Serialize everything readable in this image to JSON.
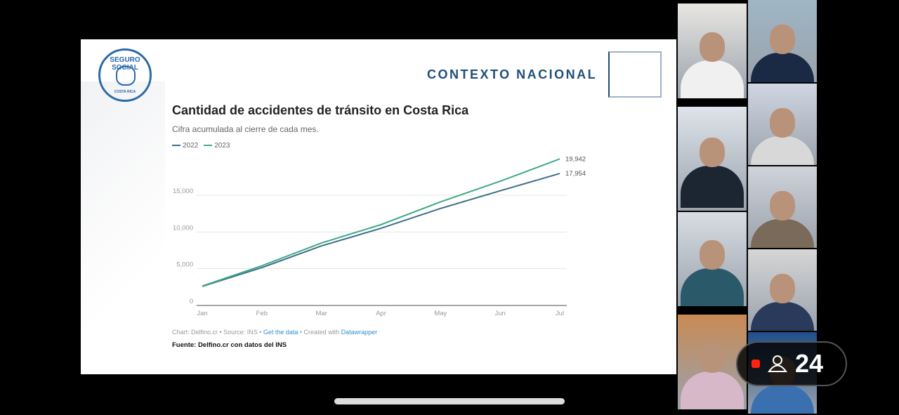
{
  "slide": {
    "logo_text": "SEGURO SOCIAL",
    "logo_subtext": "COSTA RICA",
    "section_title": "CONTEXTO NACIONAL",
    "credit": {
      "prefix": "Chart: Delfino.cr • Source: INS • ",
      "get_data": "Get the data",
      "middle": " • Created with ",
      "datawrapper": "Datawrapper"
    },
    "fuente": "Fuente: Delfino.cr con datos del INS"
  },
  "chart_data": {
    "type": "line",
    "title": "Cantidad de accidentes de tránsito en Costa Rica",
    "subtitle": "Cifra acumulada al cierre de cada mes.",
    "categories": [
      "Jan",
      "Feb",
      "Mar",
      "Apr",
      "May",
      "Jun",
      "Jul"
    ],
    "series": [
      {
        "name": "2022",
        "color": "#3d6f86",
        "values": [
          2600,
          5150,
          8100,
          10500,
          13200,
          15600,
          17954
        ]
      },
      {
        "name": "2023",
        "color": "#3fa888",
        "values": [
          2650,
          5400,
          8500,
          11000,
          14100,
          16900,
          19942
        ]
      }
    ],
    "end_labels": [
      "17,954",
      "19,942"
    ],
    "yticks": [
      0,
      5000,
      10000,
      15000
    ],
    "ytick_labels": [
      "0",
      "5,000",
      "10,000",
      "15,000"
    ],
    "ylim": [
      0,
      20000
    ],
    "grid": true,
    "legend": "top-left"
  },
  "call": {
    "participant_count": "24",
    "recording": true,
    "icons": [
      "record-dot-icon",
      "person-icon"
    ]
  }
}
